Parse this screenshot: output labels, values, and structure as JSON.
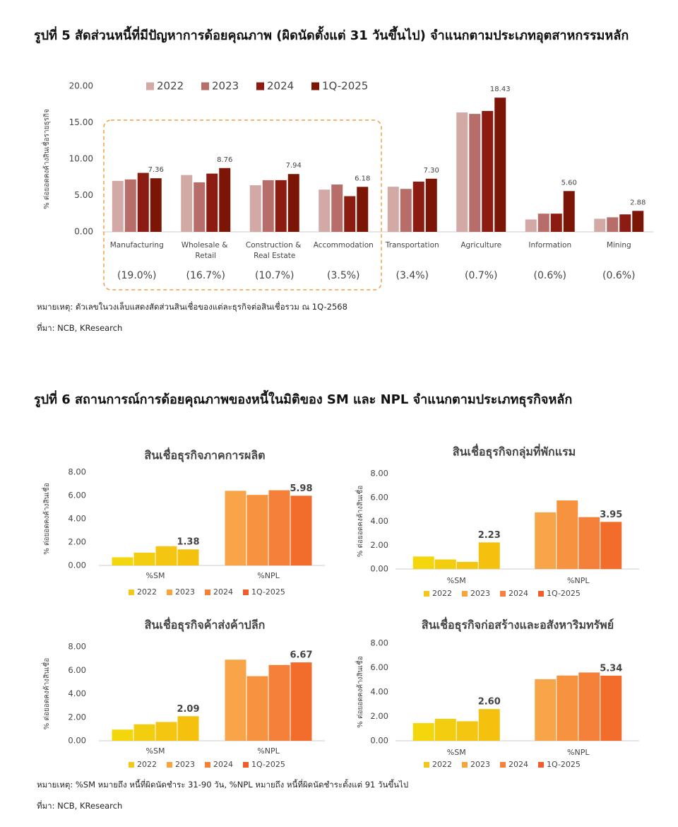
{
  "figure5": {
    "title": "รูปที่ 5  สัดส่วนหนี้ที่มีปัญหาการด้อยคุณภาพ (ผิดนัดตั้งแต่ 31 วันขึ้นไป) จำแนกตามประเภทอุตสาหกรรมหลัก",
    "note": "หมายเหตุ: ตัวเลขในวงเล็บแสดงสัดส่วนสินเชื่อของแต่ละธุรกิจต่อสินเชื่อรวม ณ 1Q-2568",
    "source": "ที่มา: NCB, KResearch"
  },
  "figure6": {
    "title": "รูปที่ 6  สถานการณ์การด้อยคุณภาพของหนี้ในมิติของ SM และ NPL จำแนกตามประเภทธุรกิจหลัก",
    "note": "หมายเหตุ: %SM หมายถึง หนี้ที่ผิดนัดชำระ 31-90 วัน, %NPL หมายถึง หนี้ที่ผิดนัดชำระตั้งแต่ 91 วันขึ้นไป",
    "source": "ที่มา: NCB, KResearch"
  },
  "chart_data": [
    {
      "type": "bar",
      "y_label": "% ต่อยอดคงค้างสินเชื่อรายธุรกิจ",
      "categories": [
        "Manufacturing",
        "Wholesale & Retail",
        "Construction & Real Estate",
        "Accommodation",
        "Transportation",
        "Agriculture",
        "Information",
        "Mining"
      ],
      "shares": [
        19.0,
        16.7,
        10.7,
        3.5,
        3.4,
        0.7,
        0.6,
        0.6
      ],
      "share_labels": [
        "(19.0%)",
        "(16.7%)",
        "(10.7%)",
        "(3.5%)",
        "(3.4%)",
        "(0.7%)",
        "(0.6%)",
        "(0.6%)"
      ],
      "series": [
        {
          "name": "2022",
          "color": "#d3a9a6",
          "values": [
            7.0,
            7.8,
            6.4,
            5.8,
            6.2,
            16.4,
            1.7,
            1.8
          ]
        },
        {
          "name": "2023",
          "color": "#b76d69",
          "values": [
            7.2,
            6.8,
            7.1,
            6.5,
            5.9,
            16.2,
            2.5,
            2.0
          ]
        },
        {
          "name": "2024",
          "color": "#8c1c12",
          "values": [
            8.1,
            8.0,
            7.1,
            4.9,
            6.9,
            16.6,
            2.5,
            2.4
          ]
        },
        {
          "name": "1Q-2025",
          "color": "#7b1607",
          "values": [
            7.36,
            8.76,
            7.94,
            6.18,
            7.3,
            18.43,
            5.6,
            2.88
          ],
          "value_labels": [
            "7.36",
            "8.76",
            "7.94",
            "6.18",
            "7.30",
            "18.43",
            "5.60",
            "2.88"
          ]
        }
      ],
      "ylim": [
        0,
        20
      ],
      "yticks": [
        {
          "value": 0,
          "label": "0.00"
        },
        {
          "value": 5,
          "label": "5.00"
        },
        {
          "value": 10,
          "label": "10.00"
        },
        {
          "value": 15,
          "label": "15.00"
        },
        {
          "value": 20,
          "label": "20.00"
        }
      ],
      "grid": false,
      "legend": "top"
    },
    {
      "type": "bar",
      "title": "สินเชื่อธุรกิจภาคการผลิต",
      "y_label": "% ต่อยอดคงค้างสินเชื่อ",
      "categories": [
        "%SM",
        "%NPL"
      ],
      "series": [
        {
          "name": "2022",
          "color": "#f6c51c",
          "colors": [
            "#f4d60c",
            "#f8a448"
          ],
          "values": [
            0.7,
            6.4
          ]
        },
        {
          "name": "2023",
          "color": "#f7a43e",
          "colors": [
            "#f3cd10",
            "#f7933f"
          ],
          "values": [
            1.1,
            6.05
          ]
        },
        {
          "name": "2024",
          "color": "#f4823a",
          "colors": [
            "#f4c612",
            "#f5803a"
          ],
          "values": [
            1.65,
            6.45
          ]
        },
        {
          "name": "1Q-2025",
          "color": "#f05d2a",
          "colors": [
            "#f4c20e",
            "#f26d2c"
          ],
          "values": [
            1.38,
            5.98
          ],
          "value_labels": [
            "1.38",
            "5.98"
          ]
        }
      ],
      "ylim": [
        0,
        8
      ],
      "yticks": [
        {
          "value": 0,
          "label": "0.00"
        },
        {
          "value": 2,
          "label": "2.00"
        },
        {
          "value": 4,
          "label": "4.00"
        },
        {
          "value": 6,
          "label": "6.00"
        },
        {
          "value": 8,
          "label": "8.00"
        }
      ],
      "grid": false,
      "legend": "bottom"
    },
    {
      "type": "bar",
      "title": "สินเชื่อธุรกิจกลุ่มที่พักแรม",
      "y_label": "% ต่อยอดคงค้างสินเชื่อ",
      "categories": [
        "%SM",
        "%NPL"
      ],
      "series": [
        {
          "name": "2022",
          "color": "#f6c51c",
          "colors": [
            "#f4d60c",
            "#f8a448"
          ],
          "values": [
            1.05,
            4.75
          ]
        },
        {
          "name": "2023",
          "color": "#f7a43e",
          "colors": [
            "#f3cd10",
            "#f7933f"
          ],
          "values": [
            0.8,
            5.75
          ]
        },
        {
          "name": "2024",
          "color": "#f4823a",
          "colors": [
            "#f4c612",
            "#f5803a"
          ],
          "values": [
            0.6,
            4.35
          ]
        },
        {
          "name": "1Q-2025",
          "color": "#f05d2a",
          "colors": [
            "#f4c20e",
            "#f26d2c"
          ],
          "values": [
            2.23,
            3.95
          ],
          "value_labels": [
            "2.23",
            "3.95"
          ]
        }
      ],
      "ylim": [
        0,
        8
      ],
      "yticks": [
        {
          "value": 0,
          "label": "0.00"
        },
        {
          "value": 2,
          "label": "2.00"
        },
        {
          "value": 4,
          "label": "4.00"
        },
        {
          "value": 6,
          "label": "6.00"
        },
        {
          "value": 8,
          "label": "8.00"
        }
      ],
      "grid": false,
      "legend": "bottom"
    },
    {
      "type": "bar",
      "title": "สินเชื่อธุรกิจค้าส่งค้าปลีก",
      "y_label": "% ต่อยอดคงค้างสินเชื่อ",
      "categories": [
        "%SM",
        "%NPL"
      ],
      "series": [
        {
          "name": "2022",
          "color": "#f6c51c",
          "colors": [
            "#f4d60c",
            "#f8a448"
          ],
          "values": [
            0.95,
            6.9
          ]
        },
        {
          "name": "2023",
          "color": "#f7a43e",
          "colors": [
            "#f3cd10",
            "#f7933f"
          ],
          "values": [
            1.4,
            5.5
          ]
        },
        {
          "name": "2024",
          "color": "#f4823a",
          "colors": [
            "#f4c612",
            "#f5803a"
          ],
          "values": [
            1.6,
            6.45
          ]
        },
        {
          "name": "1Q-2025",
          "color": "#f05d2a",
          "colors": [
            "#f4c20e",
            "#f26d2c"
          ],
          "values": [
            2.09,
            6.67
          ],
          "value_labels": [
            "2.09",
            "6.67"
          ]
        }
      ],
      "ylim": [
        0,
        8
      ],
      "yticks": [
        {
          "value": 0,
          "label": "0.00"
        },
        {
          "value": 2,
          "label": "2.00"
        },
        {
          "value": 4,
          "label": "4.00"
        },
        {
          "value": 6,
          "label": "6.00"
        },
        {
          "value": 8,
          "label": "8.00"
        }
      ],
      "grid": false,
      "legend": "bottom"
    },
    {
      "type": "bar",
      "title": "สินเชื่อธุรกิจก่อสร้างและอสังหาริมทรัพย์",
      "y_label": "% ต่อยอดคงค้างสินเชื่อ",
      "categories": [
        "%SM",
        "%NPL"
      ],
      "series": [
        {
          "name": "2022",
          "color": "#f6c51c",
          "colors": [
            "#f4d60c",
            "#f8a448"
          ],
          "values": [
            1.45,
            5.05
          ]
        },
        {
          "name": "2023",
          "color": "#f7a43e",
          "colors": [
            "#f3cd10",
            "#f7933f"
          ],
          "values": [
            1.8,
            5.35
          ]
        },
        {
          "name": "2024",
          "color": "#f4823a",
          "colors": [
            "#f4c612",
            "#f5803a"
          ],
          "values": [
            1.6,
            5.6
          ]
        },
        {
          "name": "1Q-2025",
          "color": "#f05d2a",
          "colors": [
            "#f4c20e",
            "#f26d2c"
          ],
          "values": [
            2.6,
            5.34
          ],
          "value_labels": [
            "2.60",
            "5.34"
          ]
        }
      ],
      "ylim": [
        0,
        8
      ],
      "yticks": [
        {
          "value": 0,
          "label": "0.00"
        },
        {
          "value": 2,
          "label": "2.00"
        },
        {
          "value": 4,
          "label": "4.00"
        },
        {
          "value": 6,
          "label": "6.00"
        },
        {
          "value": 8,
          "label": "8.00"
        }
      ],
      "grid": false,
      "legend": "bottom"
    }
  ]
}
